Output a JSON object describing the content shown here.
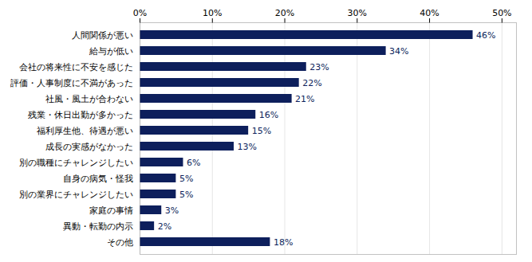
{
  "chart_data": {
    "type": "bar",
    "orientation": "horizontal",
    "categories": [
      "その他",
      "異動・転勤の内示",
      "家庭の事情",
      "別の業界にチャレンジしたい",
      "自身の病気・怪我",
      "別の職種にチャレンジしたい",
      "成長の実感がなかった",
      "福利厚生他、待遇が悪い",
      "残業・休日出勤が多かった",
      "社風・風土が合わない",
      "評価・人事制度に不満があった",
      "会社の将来性に不安を感じた",
      "給与が低い",
      "人間関係が悪い"
    ],
    "values": [
      18,
      2,
      3,
      5,
      5,
      6,
      13,
      15,
      16,
      21,
      22,
      23,
      34,
      46
    ],
    "value_labels": [
      "18%",
      "2%",
      "3%",
      "5%",
      "5%",
      "6%",
      "13%",
      "15%",
      "16%",
      "21%",
      "22%",
      "23%",
      "34%",
      "46%"
    ],
    "data_labels": true,
    "color": "#0d1f5c",
    "xlim": [
      0,
      52
    ],
    "xticks": [
      {
        "value": 0,
        "label": "0%"
      },
      {
        "value": 10,
        "label": "10%"
      },
      {
        "value": 20,
        "label": "20%"
      },
      {
        "value": 30,
        "label": "30%"
      },
      {
        "value": 40,
        "label": "40%"
      },
      {
        "value": 50,
        "label": "50%"
      }
    ],
    "grid": true
  }
}
